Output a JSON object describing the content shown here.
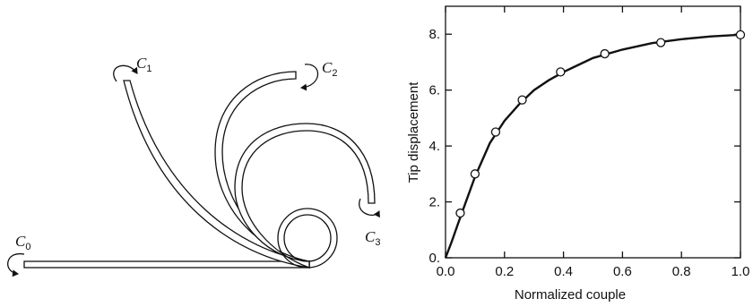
{
  "diagram": {
    "labels": [
      {
        "id": "c0",
        "symbol": "C",
        "subscript": "0"
      },
      {
        "id": "c1",
        "symbol": "C",
        "subscript": "1"
      },
      {
        "id": "c2",
        "symbol": "C",
        "subscript": "2"
      },
      {
        "id": "c3",
        "symbol": "C",
        "subscript": "3"
      }
    ]
  },
  "chart_data": {
    "type": "line",
    "title": "",
    "xlabel": "Normalized couple",
    "ylabel": "Tip displacement",
    "xlim": [
      0,
      1
    ],
    "ylim": [
      0,
      9
    ],
    "xticks": [
      "0.0",
      "0.2",
      "0.4",
      "0.6",
      "0.8",
      "1.0"
    ],
    "yticks": [
      "0.",
      "2.",
      "4.",
      "6.",
      "8."
    ],
    "ytick_values": [
      0,
      2,
      4,
      6,
      8
    ],
    "xtick_values": [
      0,
      0.2,
      0.4,
      0.6,
      0.8,
      1.0
    ],
    "grid": false,
    "series": [
      {
        "kind": "curve",
        "x": [
          0,
          0.02,
          0.05,
          0.1,
          0.15,
          0.2,
          0.25,
          0.3,
          0.35,
          0.4,
          0.5,
          0.6,
          0.7,
          0.8,
          0.9,
          1.0
        ],
        "y": [
          0,
          0.55,
          1.45,
          2.9,
          4.1,
          4.9,
          5.5,
          6.0,
          6.35,
          6.65,
          7.15,
          7.45,
          7.68,
          7.82,
          7.92,
          7.98
        ]
      },
      {
        "kind": "markers",
        "x": [
          0.05,
          0.1,
          0.17,
          0.26,
          0.39,
          0.54,
          0.73,
          1.0
        ],
        "y": [
          1.6,
          3.0,
          4.5,
          5.65,
          6.65,
          7.3,
          7.7,
          7.98
        ]
      }
    ]
  }
}
